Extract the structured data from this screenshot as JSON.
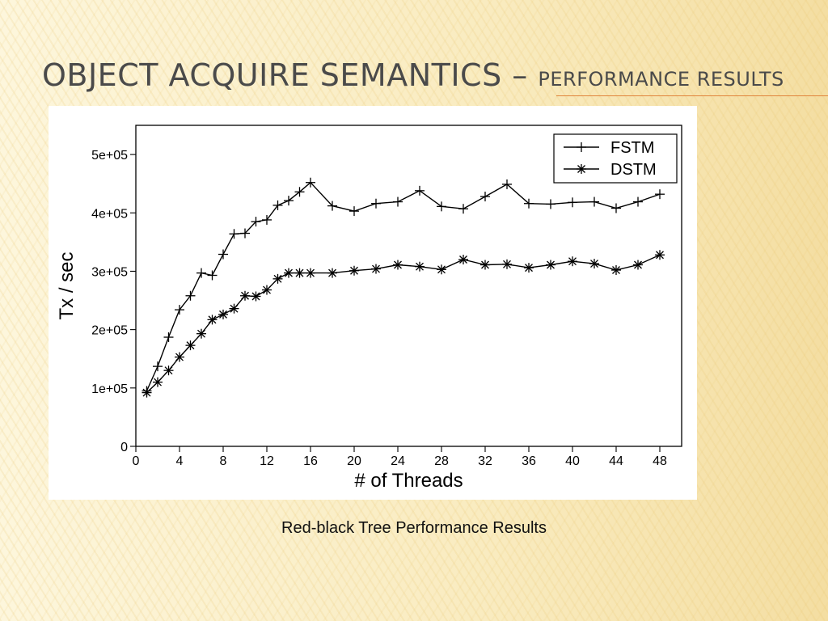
{
  "slide": {
    "title_main": "Object Acquire Semantics – ",
    "title_sub": "Performance Results",
    "caption": "Red-black Tree Performance Results"
  },
  "colors": {
    "title": "#4a4a4a",
    "accent_rule": "#e0843c",
    "series": "#000000"
  },
  "chart_data": {
    "type": "line",
    "title": "",
    "xlabel": "# of Threads",
    "ylabel": "Tx / sec",
    "xlim": [
      0,
      50
    ],
    "ylim": [
      0,
      550000
    ],
    "xticks": [
      0,
      4,
      8,
      12,
      16,
      20,
      24,
      28,
      32,
      36,
      40,
      44,
      48
    ],
    "yticks": [
      0,
      100000,
      200000,
      300000,
      400000,
      500000
    ],
    "ytick_labels": [
      "0",
      "1e+05",
      "2e+05",
      "3e+05",
      "4e+05",
      "5e+05"
    ],
    "grid": false,
    "legend_position": "top-right",
    "x": [
      1,
      2,
      3,
      4,
      5,
      6,
      7,
      8,
      9,
      10,
      11,
      12,
      13,
      14,
      15,
      16,
      18,
      20,
      22,
      24,
      26,
      28,
      30,
      32,
      34,
      36,
      38,
      40,
      42,
      44,
      46,
      48
    ],
    "series": [
      {
        "name": "FSTM",
        "marker": "plus",
        "values": [
          95000,
          137000,
          187000,
          234000,
          258000,
          297000,
          293000,
          329000,
          364000,
          365000,
          385000,
          388000,
          413000,
          421000,
          436000,
          452000,
          412000,
          403000,
          416000,
          419000,
          438000,
          411000,
          407000,
          428000,
          449000,
          416000,
          415000,
          418000,
          419000,
          408000,
          419000,
          432000
        ]
      },
      {
        "name": "DSTM",
        "marker": "asterisk",
        "values": [
          92000,
          110000,
          130000,
          153000,
          173000,
          193000,
          217000,
          226000,
          236000,
          258000,
          257000,
          268000,
          287000,
          297000,
          297000,
          297000,
          297000,
          301000,
          304000,
          311000,
          308000,
          303000,
          320000,
          311000,
          312000,
          306000,
          311000,
          317000,
          313000,
          302000,
          311000,
          328000
        ]
      }
    ]
  }
}
